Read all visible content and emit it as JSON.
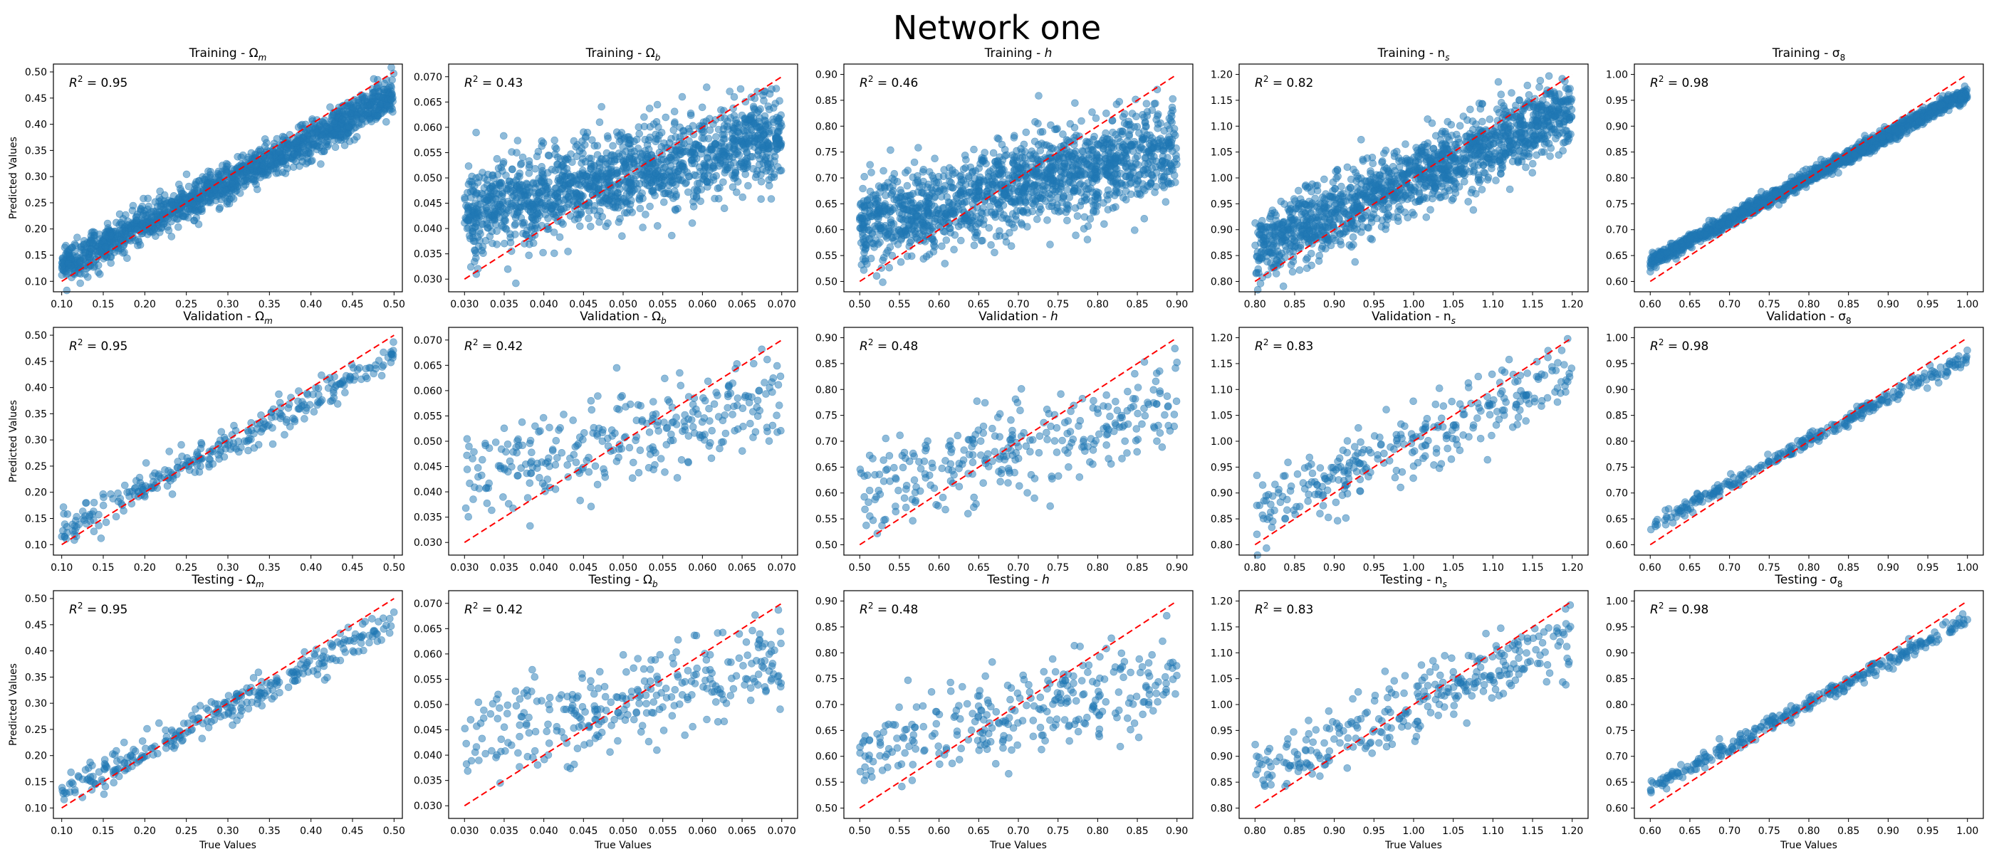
{
  "figure": {
    "title": "Network one"
  },
  "labels": {
    "ylabel": "Predicted Values",
    "xlabel": "True Values"
  },
  "chart_data": [
    {
      "type": "scatter",
      "row": "Training",
      "param": "m",
      "greek": "Ω",
      "title": "Training - Ω_m",
      "r2": "0.95",
      "xlim": [
        0.09,
        0.51
      ],
      "ylim": [
        0.08,
        0.515
      ],
      "xticks": [
        "0.10",
        "0.15",
        "0.20",
        "0.25",
        "0.30",
        "0.35",
        "0.40",
        "0.45",
        "0.50"
      ],
      "yticks": [
        "0.10",
        "0.15",
        "0.20",
        "0.25",
        "0.30",
        "0.35",
        "0.40",
        "0.45",
        "0.50"
      ],
      "reference_line": [
        0.1,
        0.5
      ],
      "n_points": 1500,
      "fit": {
        "slope": 0.82,
        "intercept": 0.045,
        "noise": 0.018
      },
      "ylabel": "Predicted Values"
    },
    {
      "type": "scatter",
      "row": "Training",
      "param": "b",
      "greek": "Ω",
      "title": "Training - Ω_b",
      "r2": "0.43",
      "xlim": [
        0.028,
        0.072
      ],
      "ylim": [
        0.0275,
        0.0725
      ],
      "xticks": [
        "0.030",
        "0.035",
        "0.040",
        "0.045",
        "0.050",
        "0.055",
        "0.060",
        "0.065",
        "0.070"
      ],
      "yticks": [
        "0.030",
        "0.035",
        "0.040",
        "0.045",
        "0.050",
        "0.055",
        "0.060",
        "0.065",
        "0.070"
      ],
      "reference_line": [
        0.03,
        0.07
      ],
      "n_points": 1500,
      "fit": {
        "slope": 0.4,
        "intercept": 0.0305,
        "noise": 0.0045
      }
    },
    {
      "type": "scatter",
      "row": "Training",
      "param": "h",
      "greek": "",
      "title": "Training - h",
      "r2": "0.46",
      "xlim": [
        0.48,
        0.92
      ],
      "ylim": [
        0.48,
        0.92
      ],
      "xticks": [
        "0.50",
        "0.55",
        "0.60",
        "0.65",
        "0.70",
        "0.75",
        "0.80",
        "0.85",
        "0.90"
      ],
      "yticks": [
        "0.50",
        "0.55",
        "0.60",
        "0.65",
        "0.70",
        "0.75",
        "0.80",
        "0.85",
        "0.90"
      ],
      "reference_line": [
        0.5,
        0.9
      ],
      "n_points": 1500,
      "fit": {
        "slope": 0.37,
        "intercept": 0.425,
        "noise": 0.045
      }
    },
    {
      "type": "scatter",
      "row": "Training",
      "param": "s",
      "greek": "n",
      "title": "Training - n_s",
      "r2": "0.82",
      "xlim": [
        0.78,
        1.22
      ],
      "ylim": [
        0.78,
        1.22
      ],
      "xticks": [
        "0.80",
        "0.85",
        "0.90",
        "0.95",
        "1.00",
        "1.05",
        "1.10",
        "1.15",
        "1.20"
      ],
      "yticks": [
        "0.80",
        "0.85",
        "0.90",
        "0.95",
        "1.00",
        "1.05",
        "1.10",
        "1.15",
        "1.20"
      ],
      "reference_line": [
        0.8,
        1.2
      ],
      "n_points": 1500,
      "fit": {
        "slope": 0.67,
        "intercept": 0.33,
        "noise": 0.035
      }
    },
    {
      "type": "scatter",
      "row": "Training",
      "param": "8",
      "greek": "σ",
      "title": "Training - σ_8",
      "r2": "0.98",
      "xlim": [
        0.58,
        1.02
      ],
      "ylim": [
        0.58,
        1.02
      ],
      "xticks": [
        "0.60",
        "0.65",
        "0.70",
        "0.75",
        "0.80",
        "0.85",
        "0.90",
        "0.95",
        "1.00"
      ],
      "yticks": [
        "0.60",
        "0.65",
        "0.70",
        "0.75",
        "0.80",
        "0.85",
        "0.90",
        "0.95",
        "1.00"
      ],
      "reference_line": [
        0.6,
        1.0
      ],
      "n_points": 1500,
      "fit": {
        "slope": 0.82,
        "intercept": 0.145,
        "noise": 0.007
      }
    },
    {
      "type": "scatter",
      "row": "Validation",
      "param": "m",
      "greek": "Ω",
      "title": "Validation - Ω_m",
      "r2": "0.95",
      "xlim": [
        0.09,
        0.51
      ],
      "ylim": [
        0.08,
        0.515
      ],
      "xticks": [
        "0.10",
        "0.15",
        "0.20",
        "0.25",
        "0.30",
        "0.35",
        "0.40",
        "0.45",
        "0.50"
      ],
      "yticks": [
        "0.10",
        "0.15",
        "0.20",
        "0.25",
        "0.30",
        "0.35",
        "0.40",
        "0.45",
        "0.50"
      ],
      "reference_line": [
        0.1,
        0.5
      ],
      "n_points": 300,
      "fit": {
        "slope": 0.82,
        "intercept": 0.045,
        "noise": 0.016
      },
      "ylabel": "Predicted Values"
    },
    {
      "type": "scatter",
      "row": "Validation",
      "param": "b",
      "greek": "Ω",
      "title": "Validation - Ω_b",
      "r2": "0.42",
      "xlim": [
        0.028,
        0.072
      ],
      "ylim": [
        0.0275,
        0.0725
      ],
      "xticks": [
        "0.030",
        "0.035",
        "0.040",
        "0.045",
        "0.050",
        "0.055",
        "0.060",
        "0.065",
        "0.070"
      ],
      "yticks": [
        "0.030",
        "0.035",
        "0.040",
        "0.045",
        "0.050",
        "0.055",
        "0.060",
        "0.065",
        "0.070"
      ],
      "reference_line": [
        0.03,
        0.07
      ],
      "n_points": 300,
      "fit": {
        "slope": 0.4,
        "intercept": 0.0305,
        "noise": 0.0045
      }
    },
    {
      "type": "scatter",
      "row": "Validation",
      "param": "h",
      "greek": "",
      "title": "Validation - h",
      "r2": "0.48",
      "xlim": [
        0.48,
        0.92
      ],
      "ylim": [
        0.48,
        0.92
      ],
      "xticks": [
        "0.50",
        "0.55",
        "0.60",
        "0.65",
        "0.70",
        "0.75",
        "0.80",
        "0.85",
        "0.90"
      ],
      "yticks": [
        "0.50",
        "0.55",
        "0.60",
        "0.65",
        "0.70",
        "0.75",
        "0.80",
        "0.85",
        "0.90"
      ],
      "reference_line": [
        0.5,
        0.9
      ],
      "n_points": 300,
      "fit": {
        "slope": 0.38,
        "intercept": 0.42,
        "noise": 0.045
      }
    },
    {
      "type": "scatter",
      "row": "Validation",
      "param": "s",
      "greek": "n",
      "title": "Validation - n_s",
      "r2": "0.83",
      "xlim": [
        0.78,
        1.22
      ],
      "ylim": [
        0.78,
        1.22
      ],
      "xticks": [
        "0.80",
        "0.85",
        "0.90",
        "0.95",
        "1.00",
        "1.05",
        "1.10",
        "1.15",
        "1.20"
      ],
      "yticks": [
        "0.80",
        "0.85",
        "0.90",
        "0.95",
        "1.00",
        "1.05",
        "1.10",
        "1.15",
        "1.20"
      ],
      "reference_line": [
        0.8,
        1.2
      ],
      "n_points": 300,
      "fit": {
        "slope": 0.67,
        "intercept": 0.33,
        "noise": 0.033
      }
    },
    {
      "type": "scatter",
      "row": "Validation",
      "param": "8",
      "greek": "σ",
      "title": "Validation - σ_8",
      "r2": "0.98",
      "xlim": [
        0.58,
        1.02
      ],
      "ylim": [
        0.58,
        1.02
      ],
      "xticks": [
        "0.60",
        "0.65",
        "0.70",
        "0.75",
        "0.80",
        "0.85",
        "0.90",
        "0.95",
        "1.00"
      ],
      "yticks": [
        "0.60",
        "0.65",
        "0.70",
        "0.75",
        "0.80",
        "0.85",
        "0.90",
        "0.95",
        "1.00"
      ],
      "reference_line": [
        0.6,
        1.0
      ],
      "n_points": 300,
      "fit": {
        "slope": 0.82,
        "intercept": 0.145,
        "noise": 0.007
      }
    },
    {
      "type": "scatter",
      "row": "Testing",
      "param": "m",
      "greek": "Ω",
      "title": "Testing - Ω_m",
      "r2": "0.95",
      "xlim": [
        0.09,
        0.51
      ],
      "ylim": [
        0.08,
        0.515
      ],
      "xticks": [
        "0.10",
        "0.15",
        "0.20",
        "0.25",
        "0.30",
        "0.35",
        "0.40",
        "0.45",
        "0.50"
      ],
      "yticks": [
        "0.10",
        "0.15",
        "0.20",
        "0.25",
        "0.30",
        "0.35",
        "0.40",
        "0.45",
        "0.50"
      ],
      "reference_line": [
        0.1,
        0.5
      ],
      "n_points": 300,
      "fit": {
        "slope": 0.82,
        "intercept": 0.045,
        "noise": 0.016
      },
      "ylabel": "Predicted Values",
      "xlabel": "True Values"
    },
    {
      "type": "scatter",
      "row": "Testing",
      "param": "b",
      "greek": "Ω",
      "title": "Testing - Ω_b",
      "r2": "0.42",
      "xlim": [
        0.028,
        0.072
      ],
      "ylim": [
        0.0275,
        0.0725
      ],
      "xticks": [
        "0.030",
        "0.035",
        "0.040",
        "0.045",
        "0.050",
        "0.055",
        "0.060",
        "0.065",
        "0.070"
      ],
      "yticks": [
        "0.030",
        "0.035",
        "0.040",
        "0.045",
        "0.050",
        "0.055",
        "0.060",
        "0.065",
        "0.070"
      ],
      "reference_line": [
        0.03,
        0.07
      ],
      "n_points": 300,
      "fit": {
        "slope": 0.4,
        "intercept": 0.0305,
        "noise": 0.0045
      },
      "xlabel": "True Values"
    },
    {
      "type": "scatter",
      "row": "Testing",
      "param": "h",
      "greek": "",
      "title": "Testing - h",
      "r2": "0.48",
      "xlim": [
        0.48,
        0.92
      ],
      "ylim": [
        0.48,
        0.92
      ],
      "xticks": [
        "0.50",
        "0.55",
        "0.60",
        "0.65",
        "0.70",
        "0.75",
        "0.80",
        "0.85",
        "0.90"
      ],
      "yticks": [
        "0.50",
        "0.55",
        "0.60",
        "0.65",
        "0.70",
        "0.75",
        "0.80",
        "0.85",
        "0.90"
      ],
      "reference_line": [
        0.5,
        0.9
      ],
      "n_points": 300,
      "fit": {
        "slope": 0.38,
        "intercept": 0.42,
        "noise": 0.045
      },
      "xlabel": "True Values"
    },
    {
      "type": "scatter",
      "row": "Testing",
      "param": "s",
      "greek": "n",
      "title": "Testing - n_s",
      "r2": "0.83",
      "xlim": [
        0.78,
        1.22
      ],
      "ylim": [
        0.78,
        1.22
      ],
      "xticks": [
        "0.80",
        "0.85",
        "0.90",
        "0.95",
        "1.00",
        "1.05",
        "1.10",
        "1.15",
        "1.20"
      ],
      "yticks": [
        "0.80",
        "0.85",
        "0.90",
        "0.95",
        "1.00",
        "1.05",
        "1.10",
        "1.15",
        "1.20"
      ],
      "reference_line": [
        0.8,
        1.2
      ],
      "n_points": 300,
      "fit": {
        "slope": 0.67,
        "intercept": 0.33,
        "noise": 0.033
      },
      "xlabel": "True Values"
    },
    {
      "type": "scatter",
      "row": "Testing",
      "param": "8",
      "greek": "σ",
      "title": "Testing - σ_8",
      "r2": "0.98",
      "xlim": [
        0.58,
        1.02
      ],
      "ylim": [
        0.58,
        1.02
      ],
      "xticks": [
        "0.60",
        "0.65",
        "0.70",
        "0.75",
        "0.80",
        "0.85",
        "0.90",
        "0.95",
        "1.00"
      ],
      "yticks": [
        "0.60",
        "0.65",
        "0.70",
        "0.75",
        "0.80",
        "0.85",
        "0.90",
        "0.95",
        "1.00"
      ],
      "reference_line": [
        0.6,
        1.0
      ],
      "n_points": 300,
      "fit": {
        "slope": 0.82,
        "intercept": 0.145,
        "noise": 0.007
      },
      "xlabel": "True Values"
    }
  ]
}
